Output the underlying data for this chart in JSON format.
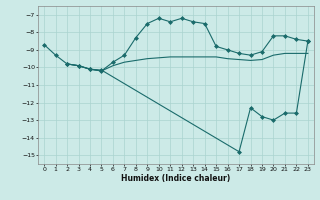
{
  "xlabel": "Humidex (Indice chaleur)",
  "bg_color": "#cceae7",
  "grid_color": "#aad4d0",
  "line_color": "#1a6b6b",
  "xlim": [
    -0.5,
    23.5
  ],
  "ylim": [
    -15.5,
    -6.5
  ],
  "yticks": [
    -15,
    -14,
    -13,
    -12,
    -11,
    -10,
    -9,
    -8,
    -7
  ],
  "series": [
    {
      "x": [
        0,
        1,
        2,
        3,
        4,
        5,
        6,
        7,
        8,
        9,
        10,
        11,
        12,
        13,
        14,
        15,
        16,
        17,
        18,
        19,
        20,
        21,
        22,
        23
      ],
      "y": [
        -8.7,
        -9.3,
        -9.8,
        -9.9,
        -10.1,
        -10.2,
        -9.7,
        -9.3,
        -8.3,
        -7.5,
        -7.2,
        -7.4,
        -7.2,
        -7.4,
        -7.5,
        -8.8,
        -9.0,
        -9.2,
        -9.3,
        -9.1,
        -8.2,
        -8.2,
        -8.4,
        -8.5
      ],
      "marker": "D",
      "markersize": 2.0
    },
    {
      "x": [
        2,
        3,
        4,
        5,
        6,
        7,
        8,
        9,
        10,
        11,
        12,
        13,
        14,
        15,
        16,
        17,
        18,
        19,
        20,
        21,
        22,
        23
      ],
      "y": [
        -9.8,
        -9.9,
        -10.1,
        -10.2,
        -9.9,
        -9.7,
        -9.6,
        -9.5,
        -9.45,
        -9.4,
        -9.4,
        -9.4,
        -9.4,
        -9.4,
        -9.5,
        -9.55,
        -9.6,
        -9.55,
        -9.3,
        -9.2,
        -9.2,
        -9.2
      ],
      "marker": "None",
      "markersize": 0
    },
    {
      "x": [
        2,
        3,
        4,
        5,
        17,
        18,
        19,
        20,
        21,
        22,
        23
      ],
      "y": [
        -9.8,
        -9.9,
        -10.1,
        -10.15,
        -14.8,
        -12.3,
        -12.8,
        -13.0,
        -12.6,
        -12.6,
        -8.5
      ],
      "marker": "D",
      "markersize": 2.0
    }
  ]
}
